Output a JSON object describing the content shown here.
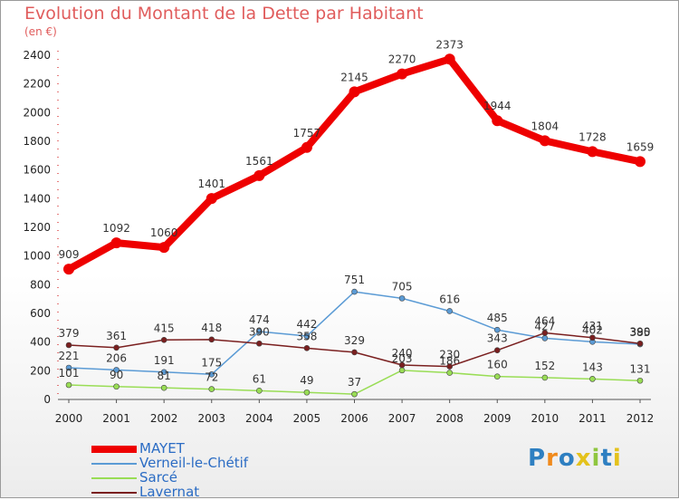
{
  "title": "Evolution du Montant de la Dette par Habitant",
  "subtitle": "(en €)",
  "logo": {
    "text": "Proxiti",
    "colors": [
      "#2e7fc1",
      "#f08a1c",
      "#2e7fc1",
      "#e4c21c",
      "#8fc63f",
      "#2e7fc1",
      "#e4c21c"
    ]
  },
  "chart_data": {
    "type": "line",
    "x": [
      "2000",
      "2001",
      "2002",
      "2003",
      "2004",
      "2005",
      "2006",
      "2007",
      "2008",
      "2009",
      "2010",
      "2011",
      "2012"
    ],
    "ylim": [
      0,
      2400
    ],
    "yticks": [
      "0",
      "200",
      "400",
      "600",
      "800",
      "1000",
      "1200",
      "1400",
      "1600",
      "1800",
      "2000",
      "2200",
      "2400"
    ],
    "grid": false,
    "legend_position": "bottom-left",
    "series": [
      {
        "name": "Verneil-le-Chétif",
        "color": "#5b9bd5",
        "width": 1.5,
        "marker": 3,
        "values": [
          221,
          206,
          191,
          175,
          474,
          442,
          751,
          705,
          616,
          485,
          427,
          402,
          385
        ],
        "labels": [
          "221",
          "206",
          "191",
          "175",
          "474",
          "442",
          "751",
          "705",
          "616",
          "485",
          "427",
          "402",
          "385"
        ]
      },
      {
        "name": "Sarcé",
        "color": "#99dd55",
        "width": 1.5,
        "marker": 3,
        "values": [
          101,
          90,
          81,
          72,
          61,
          49,
          37,
          203,
          186,
          160,
          152,
          143,
          131
        ],
        "labels": [
          "101",
          "90",
          "81",
          "72",
          "61",
          "49",
          "37",
          "203",
          "186",
          "160",
          "152",
          "143",
          "131"
        ]
      },
      {
        "name": "Lavernat",
        "color": "#7a1f1f",
        "width": 1.5,
        "marker": 3,
        "values": [
          379,
          361,
          415,
          418,
          390,
          358,
          329,
          240,
          230,
          343,
          464,
          431,
          390
        ],
        "labels": [
          "379",
          "361",
          "415",
          "418",
          "390",
          "358",
          "329",
          "240",
          "230",
          "343",
          "464",
          "431",
          "390"
        ]
      },
      {
        "name": "MAYET",
        "color": "#ee0000",
        "width": 8,
        "marker": 6,
        "values": [
          909,
          1092,
          1060,
          1401,
          1561,
          1757,
          2145,
          2270,
          2373,
          1944,
          1804,
          1728,
          1659
        ],
        "labels": [
          "909",
          "1092",
          "1060",
          "1401",
          "1561",
          "1757",
          "2145",
          "2270",
          "2373",
          "1944",
          "1804",
          "1728",
          "1659"
        ]
      }
    ],
    "legend": [
      {
        "name": "MAYET",
        "color": "#ee0000"
      },
      {
        "name": "Verneil-le-Chétif",
        "color": "#5b9bd5"
      },
      {
        "name": "Sarcé",
        "color": "#99dd55"
      },
      {
        "name": "Lavernat",
        "color": "#7a1f1f"
      }
    ]
  }
}
